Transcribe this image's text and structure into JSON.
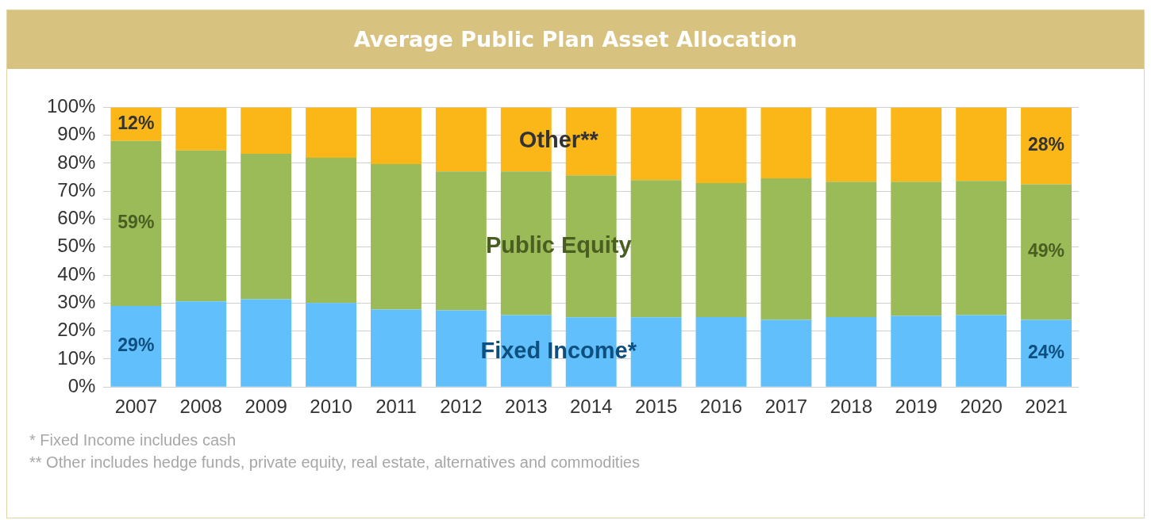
{
  "chart_data": {
    "type": "bar",
    "title": "Average Public Plan Asset Allocation",
    "stacked": true,
    "categories": [
      "2007",
      "2008",
      "2009",
      "2010",
      "2011",
      "2012",
      "2013",
      "2014",
      "2015",
      "2016",
      "2017",
      "2018",
      "2019",
      "2020",
      "2021"
    ],
    "series": [
      {
        "name": "Fixed Income*",
        "color": "#61bffb",
        "values": [
          29,
          30.6,
          31.4,
          30,
          27.7,
          27.4,
          25.7,
          24.9,
          24.9,
          25,
          24,
          25,
          25.4,
          25.7,
          24
        ],
        "value_labels": [
          "29%",
          null,
          null,
          null,
          null,
          null,
          null,
          null,
          null,
          null,
          null,
          null,
          null,
          null,
          "24%"
        ]
      },
      {
        "name": "Public Equity",
        "color": "#9bbb59",
        "values": [
          59,
          54,
          52,
          52,
          52,
          49.7,
          51.4,
          50.8,
          49.1,
          47.9,
          50.6,
          48.4,
          48,
          48,
          48.5
        ],
        "value_labels": [
          "59%",
          null,
          null,
          null,
          null,
          null,
          null,
          null,
          null,
          null,
          null,
          null,
          null,
          null,
          "49%"
        ]
      },
      {
        "name": "Other**",
        "color": "#fbb718",
        "values": [
          12,
          15.4,
          16.6,
          18,
          20.3,
          22.9,
          22.9,
          24.3,
          26,
          27.1,
          25.4,
          26.6,
          26.6,
          26.3,
          27.5
        ],
        "value_labels": [
          "12%",
          null,
          null,
          null,
          null,
          null,
          null,
          null,
          null,
          null,
          null,
          null,
          null,
          null,
          "28%"
        ]
      }
    ],
    "ylim": [
      0,
      100
    ],
    "yticks": [
      {
        "value": 0,
        "label": "0%"
      },
      {
        "value": 10,
        "label": "10%"
      },
      {
        "value": 20,
        "label": "20%"
      },
      {
        "value": 30,
        "label": "30%"
      },
      {
        "value": 40,
        "label": "40%"
      },
      {
        "value": 50,
        "label": "50%"
      },
      {
        "value": 60,
        "label": "60%"
      },
      {
        "value": 70,
        "label": "70%"
      },
      {
        "value": 80,
        "label": "80%"
      },
      {
        "value": 90,
        "label": "90%"
      },
      {
        "value": 100,
        "label": "100%"
      }
    ],
    "grid": "y",
    "legend": false,
    "annotations": [
      "* Fixed Income includes cash",
      "** Other includes hedge funds, private equity, real estate, alternatives and commodities"
    ]
  }
}
